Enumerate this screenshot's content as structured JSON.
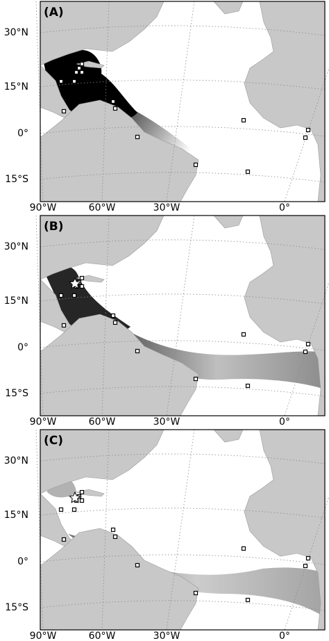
{
  "panels": [
    {
      "label": "(A)",
      "lat_labels": [
        "30°N",
        "15°N",
        "0°",
        "15°S"
      ],
      "lon_labels": [
        "90°W",
        "60°W",
        "30°W",
        "0°"
      ]
    },
    {
      "label": "(B)",
      "lat_labels": [
        "30°N",
        "15°N",
        "0°",
        "15°S"
      ],
      "lon_labels": [
        "90°W",
        "60°W",
        "30°W",
        "0°"
      ]
    },
    {
      "label": "(C)",
      "lat_labels": [
        "30°N",
        "15°N",
        "0°",
        "15°S"
      ],
      "lon_labels": [
        "90°W",
        "60°W",
        "30°W",
        "0°"
      ]
    }
  ]
}
